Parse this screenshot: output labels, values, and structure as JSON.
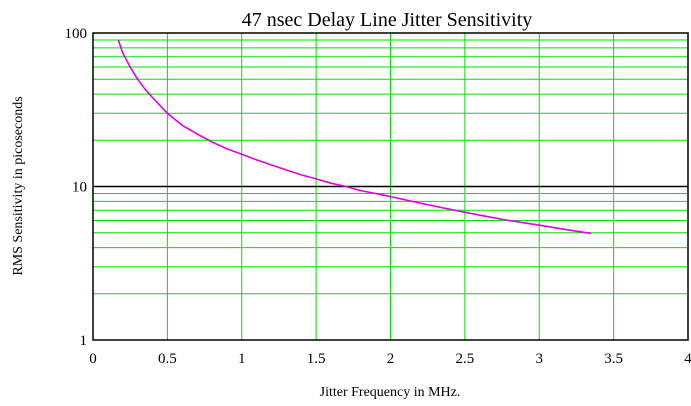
{
  "chart_data": {
    "type": "line",
    "title": "47 nsec Delay Line Jitter Sensitivity",
    "xlabel": "Jitter Frequency in MHz.",
    "ylabel": "RMS Sensitivity in picoseconds",
    "xlim": [
      0,
      4
    ],
    "ylim": [
      1,
      100
    ],
    "y_scale": "log",
    "grid": true,
    "x_ticks": [
      {
        "value": 0,
        "label": "0"
      },
      {
        "value": 0.5,
        "label": "0.5"
      },
      {
        "value": 1,
        "label": "1"
      },
      {
        "value": 1.5,
        "label": "1.5"
      },
      {
        "value": 2,
        "label": "2"
      },
      {
        "value": 2.5,
        "label": "2.5"
      },
      {
        "value": 3,
        "label": "3"
      },
      {
        "value": 3.5,
        "label": "3.5"
      },
      {
        "value": 4,
        "label": "4"
      }
    ],
    "y_ticks": [
      {
        "value": 1,
        "label": "1"
      },
      {
        "value": 10,
        "label": "10"
      },
      {
        "value": 100,
        "label": "100"
      }
    ],
    "series": [
      {
        "color": "#e000e0",
        "x": [
          0.17,
          0.2,
          0.25,
          0.3,
          0.35,
          0.4,
          0.5,
          0.6,
          0.7,
          0.8,
          0.9,
          1.0,
          1.1,
          1.2,
          1.3,
          1.4,
          1.5,
          1.6,
          1.7,
          1.8,
          1.9,
          2.0,
          2.2,
          2.4,
          2.6,
          2.8,
          3.0,
          3.2,
          3.35
        ],
        "y": [
          90,
          74,
          60,
          50,
          43,
          38,
          30,
          25,
          22,
          19.5,
          17.6,
          16.2,
          14.9,
          13.8,
          12.8,
          11.9,
          11.2,
          10.5,
          10.0,
          9.4,
          9.0,
          8.6,
          7.8,
          7.1,
          6.5,
          6.0,
          5.6,
          5.2,
          4.95
        ]
      }
    ],
    "colors": {
      "grid": "#00e000",
      "frame": "#000000",
      "major_gridline": "#000000"
    }
  }
}
